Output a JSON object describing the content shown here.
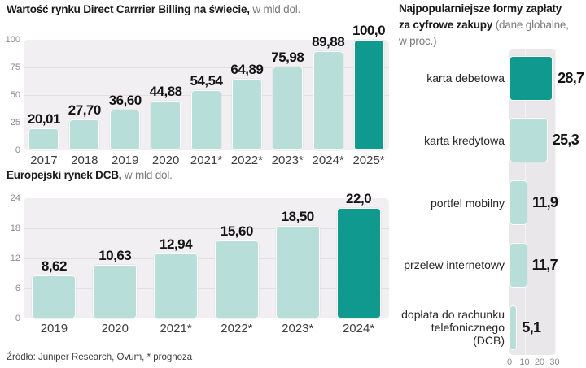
{
  "source": "Źródło: Juniper Research, Ovum, * prognoza",
  "colors": {
    "highlight": "#10998e",
    "bar": "#b7ded8",
    "plot_background": "#f1eff1",
    "track_background": "#e9e7e9"
  },
  "chart_data": [
    {
      "type": "bar",
      "title": "Wartość rynku Direct Carrrier Billing na świecie,",
      "subtitle": " w mld dol.",
      "categories": [
        "2017",
        "2018",
        "2019",
        "2020",
        "2021*",
        "2022*",
        "2023*",
        "2024*",
        "2025*"
      ],
      "values": [
        20.01,
        27.7,
        36.6,
        44.88,
        54.54,
        64.89,
        75.98,
        89.88,
        100.0
      ],
      "value_labels": [
        "20,01",
        "27,70",
        "36,60",
        "44,88",
        "54,54",
        "64,89",
        "75,98",
        "89,88",
        "100,0"
      ],
      "yticks": [
        0,
        25,
        50,
        75,
        100
      ],
      "ylim": [
        0,
        100
      ],
      "highlight_index": 8,
      "grid": true,
      "legend": false
    },
    {
      "type": "bar",
      "title": "Europejski rynek DCB,",
      "subtitle": " w mld dol.",
      "categories": [
        "2019",
        "2020",
        "2021*",
        "2022*",
        "2023*",
        "2024*"
      ],
      "values": [
        8.62,
        10.63,
        12.94,
        15.6,
        18.5,
        22.0
      ],
      "value_labels": [
        "8,62",
        "10,63",
        "12,94",
        "15,60",
        "18,50",
        "22,0"
      ],
      "yticks": [
        0,
        6,
        12,
        18,
        24
      ],
      "ylim": [
        0,
        24
      ],
      "highlight_index": 5,
      "grid": true,
      "legend": false
    },
    {
      "type": "bar",
      "orientation": "horizontal",
      "title": "Najpopularniejsze formy zapłaty\nza cyfrowe zakupy ",
      "subtitle": "(dane globalne,\nw proc.)",
      "categories": [
        "karta debetowa",
        "karta kredytowa",
        "portfel mobilny",
        "przelew internetowy",
        "dopłata do rachunku\ntelefonicznego\n(DCB)"
      ],
      "values": [
        28.7,
        25.3,
        11.9,
        11.7,
        5.1
      ],
      "value_labels": [
        "28,7",
        "25,3",
        "11,9",
        "11,7",
        "5,1"
      ],
      "xticks": [
        0,
        10,
        20,
        30
      ],
      "xlim": [
        0,
        30
      ],
      "highlight_index": 0,
      "grid": true,
      "legend": false
    }
  ]
}
